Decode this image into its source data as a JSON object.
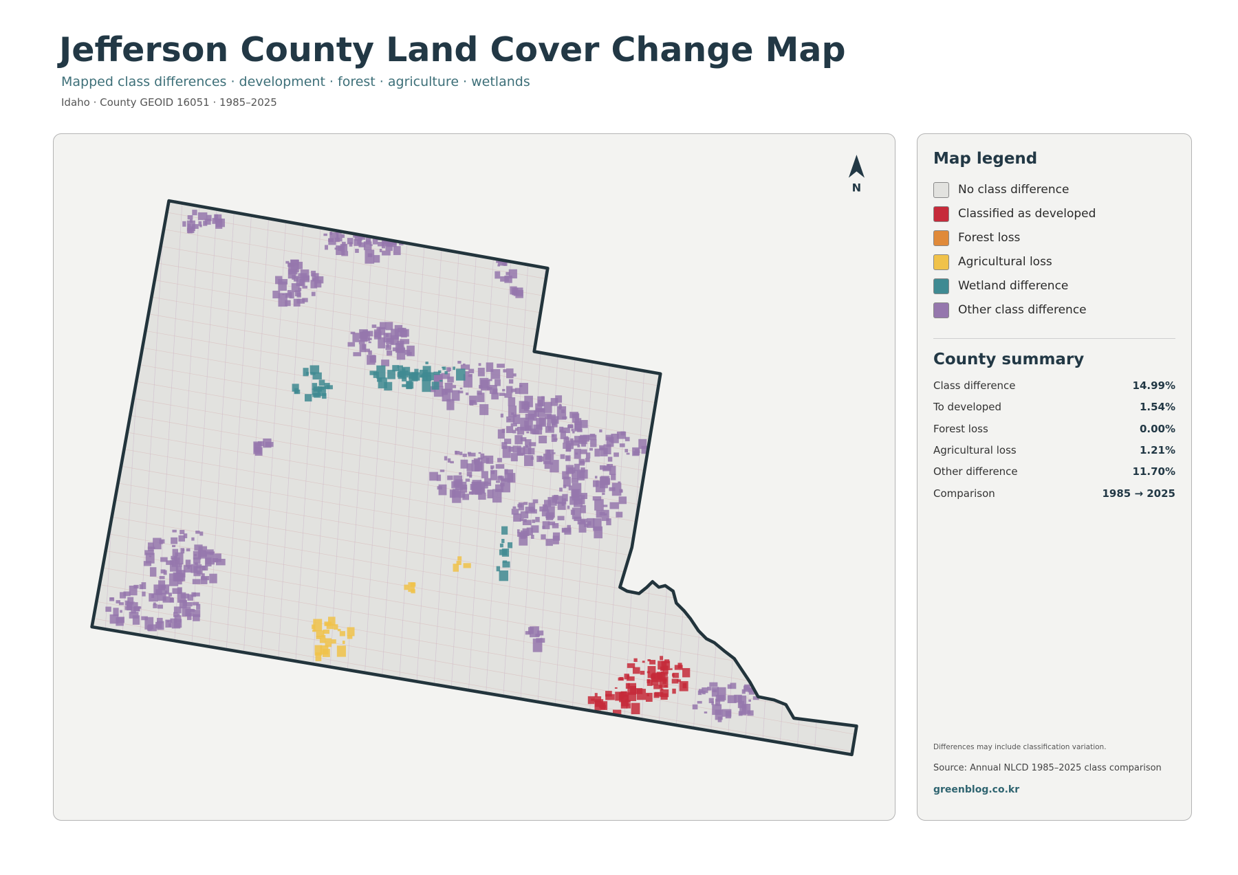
{
  "header": {
    "title": "Jefferson County Land Cover Change Map",
    "subtitle": "Mapped class differences · development · forest · agriculture · wetlands",
    "meta": "Idaho · County GEOID 16051 · 1985–2025"
  },
  "map": {
    "north_label": "N"
  },
  "legend": {
    "title": "Map legend",
    "items": [
      {
        "label": "No class difference",
        "color": "#e2e2df"
      },
      {
        "label": "Classified as developed",
        "color": "#c62a3a"
      },
      {
        "label": "Forest loss",
        "color": "#e08a3a"
      },
      {
        "label": "Agricultural loss",
        "color": "#f0c24a"
      },
      {
        "label": "Wetland difference",
        "color": "#3f8a92"
      },
      {
        "label": "Other class difference",
        "color": "#9577ad"
      }
    ]
  },
  "summary": {
    "title": "County summary",
    "rows": [
      [
        "Class difference",
        "14.99%"
      ],
      [
        "To developed",
        "1.54%"
      ],
      [
        "Forest loss",
        "0.00%"
      ],
      [
        "Agricultural loss",
        "1.21%"
      ],
      [
        "Other difference",
        "11.70%"
      ],
      [
        "Comparison",
        "1985 → 2025"
      ]
    ]
  },
  "notes": {
    "caveat": "Differences may include classification variation.",
    "source": "Source: Annual NLCD 1985–2025 class comparison",
    "credit": "greenblog.co.kr"
  }
}
